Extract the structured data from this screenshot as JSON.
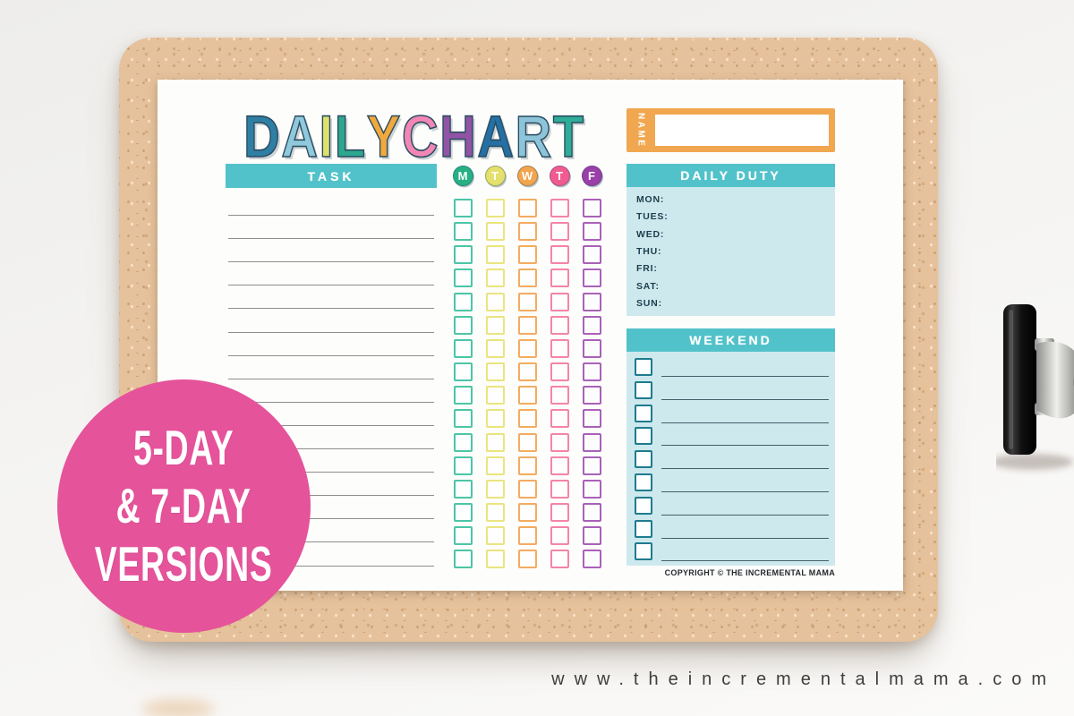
{
  "scene": {
    "footer_url": "www.theincrementalmama.com",
    "badge": {
      "lines": [
        "5-DAY",
        "& 7-DAY",
        "VERSIONS"
      ]
    }
  },
  "chart": {
    "title_letters": [
      {
        "ch": "D",
        "color": "#2f7fa5"
      },
      {
        "ch": "A",
        "color": "#8fc9db"
      },
      {
        "ch": "I",
        "color": "#dfe16b"
      },
      {
        "ch": "L",
        "color": "#2da78e"
      },
      {
        "ch": "Y",
        "color": "#f1a83d"
      },
      {
        "ch": " ",
        "color": ""
      },
      {
        "ch": "C",
        "color": "#f287b5"
      },
      {
        "ch": "H",
        "color": "#9153a6"
      },
      {
        "ch": "A",
        "color": "#2470a4"
      },
      {
        "ch": "R",
        "color": "#8dc4d9"
      },
      {
        "ch": "T",
        "color": "#2ead98"
      }
    ],
    "task": {
      "header": "TASK",
      "rows": 16
    },
    "days": [
      {
        "name": "monday",
        "label": "M",
        "circle": "#27b085",
        "box": "#4cc5a6"
      },
      {
        "name": "tuesday",
        "label": "T",
        "circle": "#e4e06c",
        "box": "#eae47f"
      },
      {
        "name": "wednesday",
        "label": "W",
        "circle": "#f2a54d",
        "box": "#f4ab60"
      },
      {
        "name": "thursday",
        "label": "T",
        "circle": "#f25a92",
        "box": "#f484a9"
      },
      {
        "name": "friday",
        "label": "F",
        "circle": "#9b3fa9",
        "box": "#a961b8"
      }
    ],
    "name_box": {
      "label": "NAME"
    },
    "daily_duty": {
      "header": "DAILY DUTY",
      "days": [
        "MON:",
        "TUES:",
        "WED:",
        "THU:",
        "FRI:",
        "SAT:",
        "SUN:"
      ]
    },
    "weekend": {
      "header": "WEEKEND",
      "rows": 9
    },
    "copyright": "COPYRIGHT © THE INCREMENTAL MAMA"
  },
  "colors": {
    "header_teal": "#52c2ca",
    "panel_blue": "#cee9ed",
    "orange": "#f0a750",
    "badge_pink": "#e5539a",
    "cork": "#e6c29c",
    "navy": "#1c3d4e",
    "wk_border": "#1e7b8e",
    "wk_line": "#41606c"
  }
}
